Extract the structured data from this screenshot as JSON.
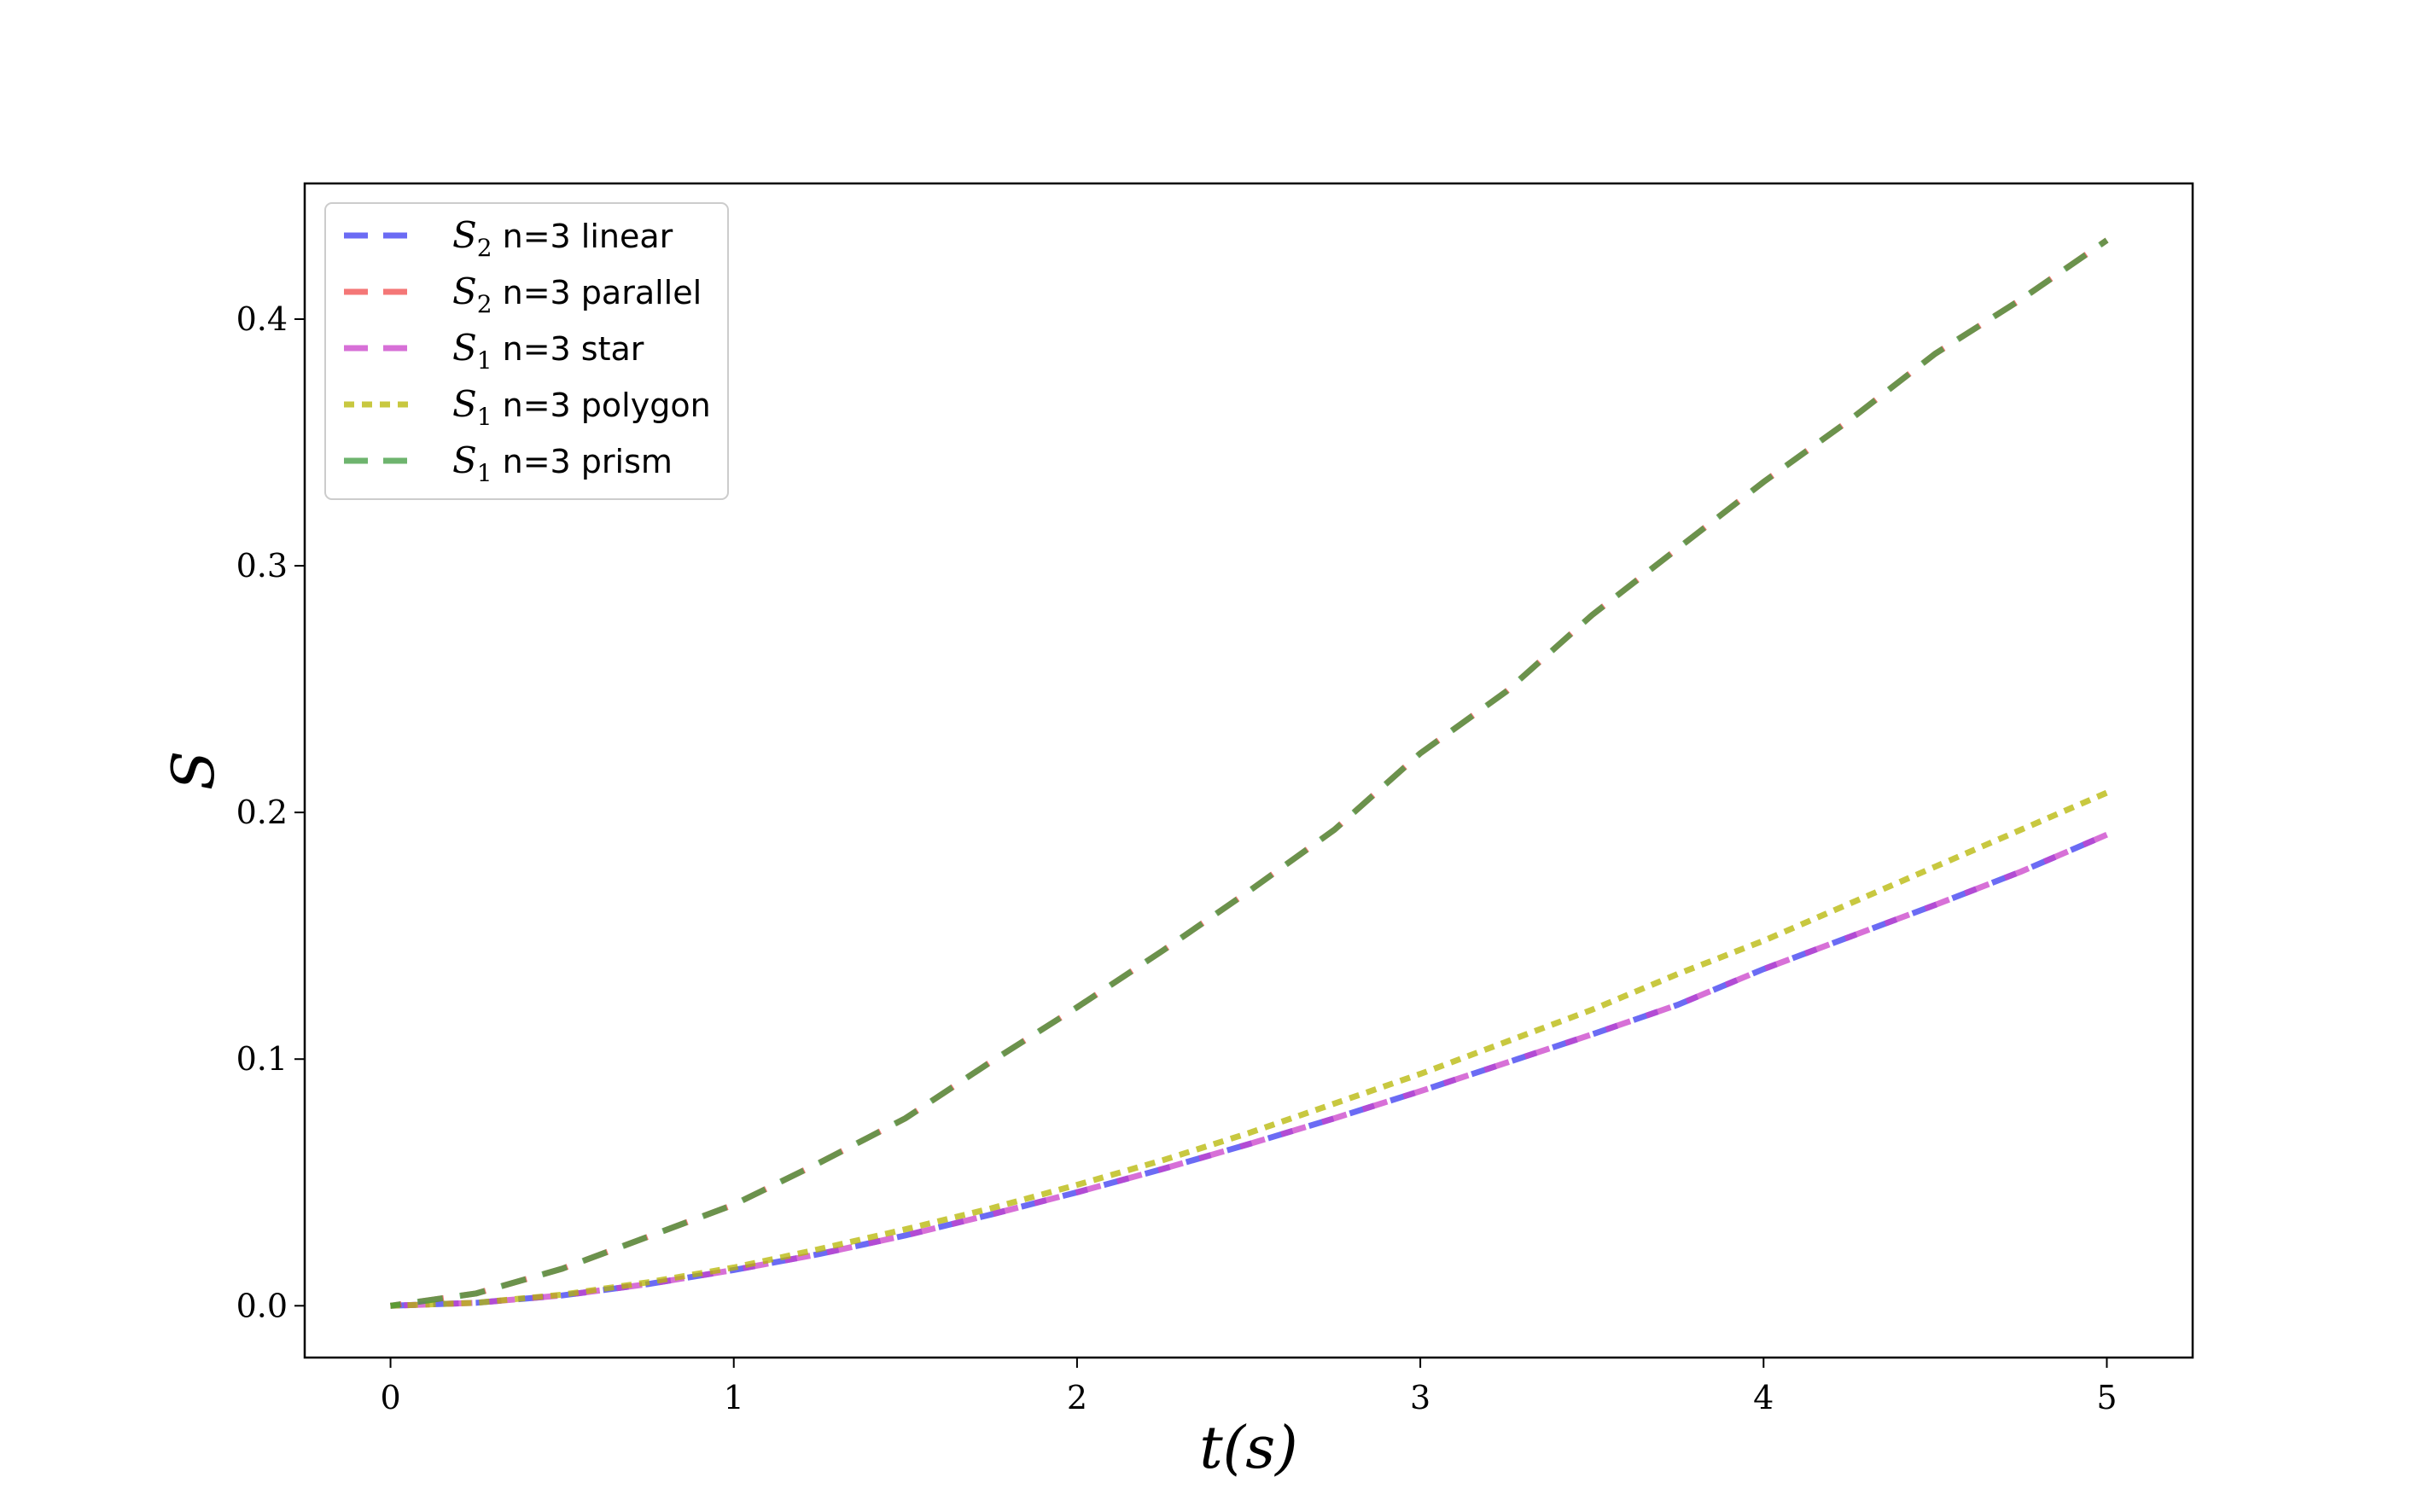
{
  "chart_data": {
    "type": "line",
    "title": "",
    "xlabel": "t(s)",
    "ylabel": "S",
    "xlim": [
      -0.25,
      5.25
    ],
    "ylim": [
      -0.021,
      0.455
    ],
    "xticks": [
      0,
      1,
      2,
      3,
      4,
      5
    ],
    "xtick_labels": [
      "0",
      "1",
      "2",
      "3",
      "4",
      "5"
    ],
    "yticks": [
      0.0,
      0.1,
      0.2,
      0.3,
      0.4
    ],
    "ytick_labels": [
      "0.0",
      "0.1",
      "0.2",
      "0.3",
      "0.4"
    ],
    "grid": false,
    "legend_position": "top-left",
    "x": [
      0,
      0.25,
      0.5,
      0.75,
      1.0,
      1.25,
      1.5,
      1.75,
      2.0,
      2.25,
      2.5,
      2.75,
      3.0,
      3.25,
      3.5,
      3.75,
      4.0,
      4.25,
      4.5,
      4.75,
      5.0
    ],
    "series": [
      {
        "name": "S2 n=3 linear",
        "legend_symbol": "S",
        "legend_sub": "2",
        "legend_text": "n=3 linear",
        "color": "#3a3af0",
        "dash": "dashed",
        "values": [
          0,
          0.0012,
          0.0042,
          0.0088,
          0.0145,
          0.021,
          0.0285,
          0.037,
          0.046,
          0.0555,
          0.0655,
          0.076,
          0.087,
          0.0985,
          0.11,
          0.122,
          0.1365,
          0.1495,
          0.1625,
          0.176,
          0.191
        ]
      },
      {
        "name": "S2 n=3 parallel",
        "legend_symbol": "S",
        "legend_sub": "2",
        "legend_text": "n=3 parallel",
        "color": "#f04a4a",
        "dash": "dashed",
        "values": [
          0,
          0.005,
          0.015,
          0.028,
          0.041,
          0.058,
          0.076,
          0.099,
          0.121,
          0.144,
          0.168,
          0.193,
          0.224,
          0.249,
          0.28,
          0.307,
          0.334,
          0.359,
          0.386,
          0.408,
          0.432
        ]
      },
      {
        "name": "S1 n=3 star",
        "legend_symbol": "S",
        "legend_sub": "1",
        "legend_text": "n=3 star",
        "color": "#c940c9",
        "dash": "dashed",
        "values": [
          0,
          0.0012,
          0.0042,
          0.0088,
          0.0145,
          0.021,
          0.0285,
          0.037,
          0.046,
          0.0555,
          0.0655,
          0.076,
          0.087,
          0.0985,
          0.11,
          0.122,
          0.1365,
          0.1495,
          0.1625,
          0.176,
          0.191
        ]
      },
      {
        "name": "S1 n=3 polygon",
        "legend_symbol": "S",
        "legend_sub": "1",
        "legend_text": "n=3 polygon",
        "color": "#b5b500",
        "dash": "dotted",
        "values": [
          0,
          0.0012,
          0.0045,
          0.0095,
          0.0155,
          0.023,
          0.031,
          0.0395,
          0.049,
          0.059,
          0.07,
          0.082,
          0.094,
          0.107,
          0.12,
          0.1345,
          0.148,
          0.163,
          0.178,
          0.193,
          0.208
        ]
      },
      {
        "name": "S1 n=3 prism",
        "legend_symbol": "S",
        "legend_sub": "1",
        "legend_text": "n=3 prism",
        "color": "#3d9b3d",
        "dash": "dashed",
        "values": [
          0,
          0.005,
          0.015,
          0.028,
          0.041,
          0.058,
          0.076,
          0.099,
          0.121,
          0.144,
          0.168,
          0.193,
          0.224,
          0.249,
          0.28,
          0.307,
          0.334,
          0.359,
          0.386,
          0.408,
          0.432
        ]
      }
    ]
  }
}
